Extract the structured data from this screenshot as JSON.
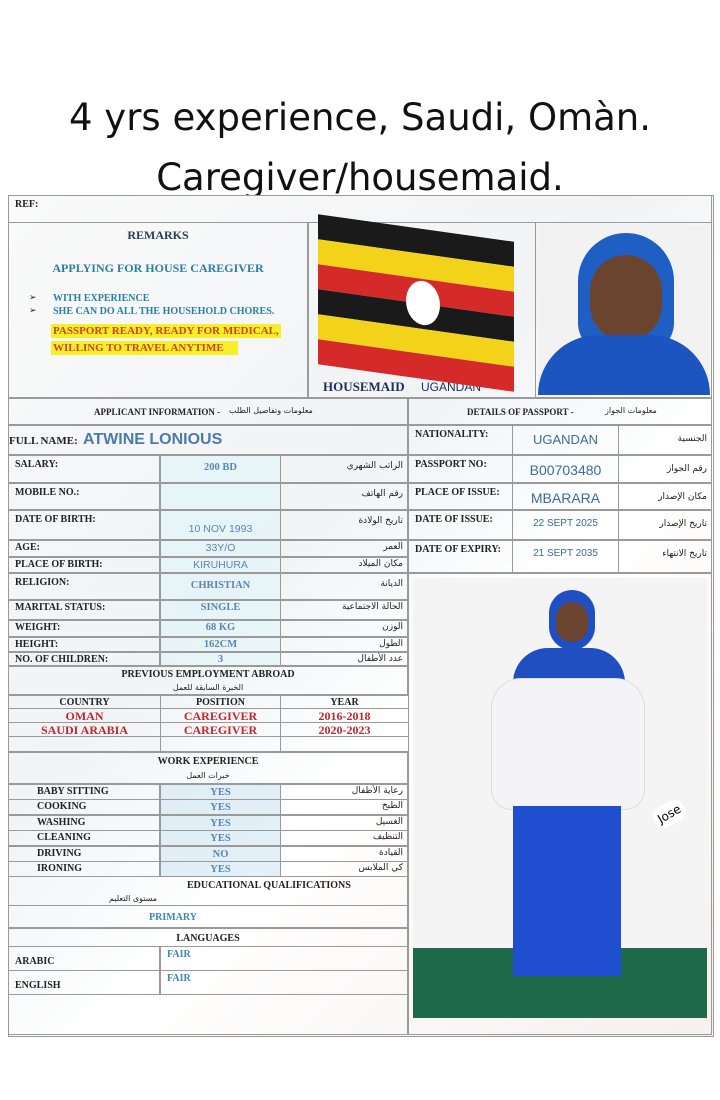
{
  "caption": {
    "line1": "4 yrs experience, Saudi, Omàn.",
    "line2": "Caregiver/housemaid."
  },
  "ref_label": "REF:",
  "remarks": {
    "title": "REMARKS",
    "applying": "APPLYING FOR HOUSE CAREGIVER",
    "bullets": [
      "WITH EXPERIENCE",
      "SHE CAN DO ALL THE HOUSEHOLD CHORES."
    ],
    "highlight1": "PASSPORT READY, READY FOR MEDICAL,",
    "highlight2": "WILLING TO TRAVEL ANYTIME"
  },
  "flag_caption": {
    "bold": "HOUSEMAID",
    "normal": "UGANDAN"
  },
  "flag_colors": [
    "#1a1a1a",
    "#f3d21a",
    "#d42a2a"
  ],
  "applicant_header": {
    "en": "APPLICANT INFORMATION -",
    "ar": "معلومات وتفاصيل الطلب"
  },
  "passport_header": {
    "en": "DETAILS OF PASSPORT -",
    "ar": "معلومات الجواز"
  },
  "full_name": {
    "label": "FULL NAME:",
    "value": "ATWINE LONIOUS"
  },
  "applicant": [
    {
      "label": "SALARY:",
      "value": "200 BD",
      "ar": "الراتب الشهري"
    },
    {
      "label": "MOBILE NO.:",
      "value": "",
      "ar": "رقم الهاتف"
    },
    {
      "label": "DATE OF BIRTH:",
      "value": "10 NOV 1993",
      "ar": "تاريخ الولادة"
    },
    {
      "label": "AGE:",
      "value": "33Y/O",
      "ar": "العمر"
    },
    {
      "label": "PLACE OF BIRTH:",
      "value": "KIRUHURA",
      "ar": "مكان الميلاد"
    },
    {
      "label": "RELIGION:",
      "value": "CHRISTIAN",
      "ar": "الديانة"
    },
    {
      "label": "MARITAL STATUS:",
      "value": "SINGLE",
      "ar": "الحالة الاجتماعية"
    },
    {
      "label": "WEIGHT:",
      "value": "68 KG",
      "ar": "الوزن"
    },
    {
      "label": "HEIGHT:",
      "value": "162CM",
      "ar": "الطول"
    },
    {
      "label": "NO. OF CHILDREN:",
      "value": "3",
      "ar": "عدد الأطفال"
    }
  ],
  "passport": [
    {
      "label": "NATIONALITY:",
      "value": "UGANDAN",
      "ar": "الجنسية"
    },
    {
      "label": "PASSPORT NO:",
      "value": "B00703480",
      "ar": "رقم الجواز"
    },
    {
      "label": "PLACE OF ISSUE:",
      "value": "MBARARA",
      "ar": "مكان الإصدار"
    },
    {
      "label": "DATE OF ISSUE:",
      "value": "22 SEPT 2025",
      "ar": "تاريخ الإصدار"
    },
    {
      "label": "DATE OF EXPIRY:",
      "value": "21 SEPT 2035",
      "ar": "تاريخ الانتهاء"
    }
  ],
  "employment": {
    "title": "PREVIOUS EMPLOYMENT ABROAD",
    "ar": "الخبرة السابقة للعمل",
    "headers": [
      "COUNTRY",
      "POSITION",
      "YEAR"
    ],
    "rows": [
      [
        "OMAN",
        "CAREGIVER",
        "2016-2018"
      ],
      [
        "SAUDI ARABIA",
        "CAREGIVER",
        "2020-2023"
      ]
    ]
  },
  "work": {
    "title": "WORK EXPERIENCE",
    "ar": "خبرات العمل",
    "rows": [
      {
        "label": "BABY SITTING",
        "value": "YES",
        "ar": "رعاية الأطفال"
      },
      {
        "label": "COOKING",
        "value": "YES",
        "ar": "الطبخ"
      },
      {
        "label": "WASHING",
        "value": "YES",
        "ar": "الغسيل"
      },
      {
        "label": "CLEANING",
        "value": "YES",
        "ar": "التنظيف"
      },
      {
        "label": "DRIVING",
        "value": "NO",
        "ar": "القيادة"
      },
      {
        "label": "IRONING",
        "value": "YES",
        "ar": "كي الملابس"
      }
    ]
  },
  "education": {
    "title": "EDUCATIONAL QUALIFICATIONS",
    "ar": "مستوى التعليم",
    "value": "PRIMARY"
  },
  "languages": {
    "title": "LANGUAGES",
    "rows": [
      {
        "label": "ARABIC",
        "value": "FAIR"
      },
      {
        "label": "ENGLISH",
        "value": "FAIR"
      }
    ]
  },
  "watermark": "Jose"
}
